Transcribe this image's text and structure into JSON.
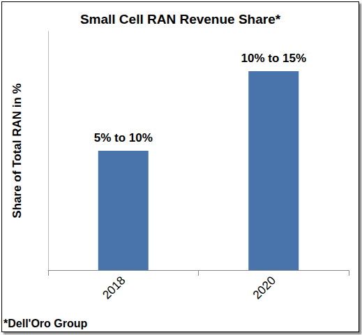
{
  "chart_data": {
    "type": "bar",
    "title": "Small Cell RAN Revenue Share*",
    "ylabel": "Share of Total RAN in %",
    "categories": [
      "2018",
      "2020"
    ],
    "values": [
      7.5,
      12.5
    ],
    "value_labels": [
      "5% to 10%",
      "10% to 15%"
    ],
    "color": "#4874ab",
    "ylim": [
      0,
      15
    ],
    "data_labels": true,
    "tick_labels": "x",
    "grid": false,
    "footnote": "*Dell'Oro Group"
  }
}
